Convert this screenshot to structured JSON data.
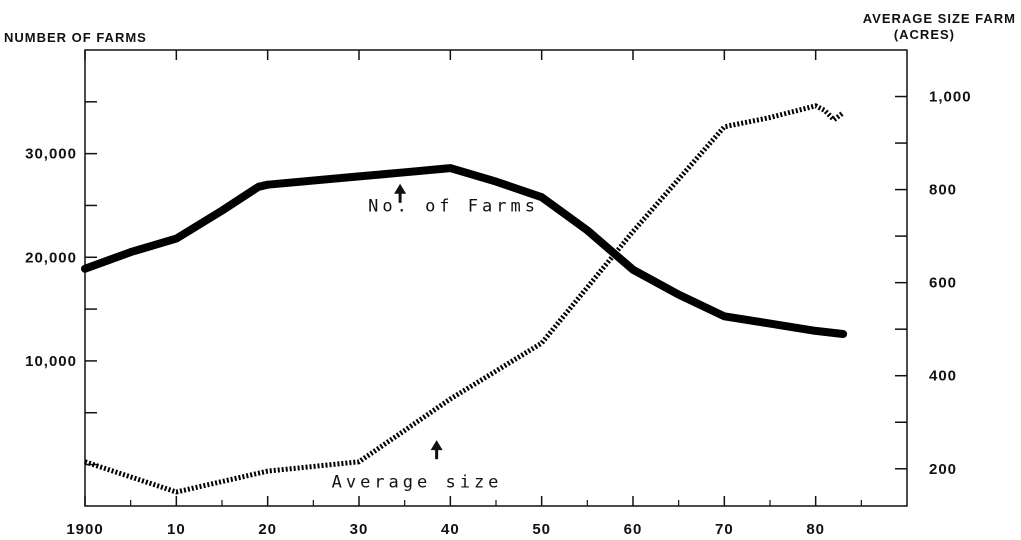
{
  "chart_data": {
    "type": "line",
    "left_axis_title": "NUMBER OF FARMS",
    "right_axis_title_line1": "AVERAGE SIZE FARM",
    "right_axis_title_line2": "(ACRES)",
    "x_ticks": [
      {
        "value": 1900,
        "label": "1900"
      },
      {
        "value": 1910,
        "label": "10"
      },
      {
        "value": 1920,
        "label": "20"
      },
      {
        "value": 1930,
        "label": "30"
      },
      {
        "value": 1940,
        "label": "40"
      },
      {
        "value": 1950,
        "label": "50"
      },
      {
        "value": 1960,
        "label": "60"
      },
      {
        "value": 1970,
        "label": "70"
      },
      {
        "value": 1980,
        "label": "80"
      }
    ],
    "xlim": [
      1900,
      1990
    ],
    "y_left": {
      "ylim": [
        -4000,
        40000
      ],
      "labeled_ticks": [
        {
          "value": 10000,
          "label": "10,000"
        },
        {
          "value": 20000,
          "label": "20,000"
        },
        {
          "value": 30000,
          "label": "30,000"
        }
      ],
      "minor_ticks": [
        0,
        5000,
        15000,
        25000,
        35000
      ]
    },
    "y_right": {
      "ylim": [
        120,
        1100
      ],
      "labeled_ticks": [
        {
          "value": 200,
          "label": "200"
        },
        {
          "value": 400,
          "label": "400"
        },
        {
          "value": 600,
          "label": "600"
        },
        {
          "value": 800,
          "label": "800"
        },
        {
          "value": 1000,
          "label": "1,000"
        }
      ],
      "minor_ticks": [
        300,
        500,
        700,
        900
      ]
    },
    "series": [
      {
        "axis": "left",
        "style": "solid",
        "color": "#000000",
        "x": [
          1900,
          1905,
          1910,
          1915,
          1919,
          1920,
          1930,
          1935,
          1940,
          1945,
          1950,
          1955,
          1960,
          1965,
          1970,
          1975,
          1980,
          1983
        ],
        "y": [
          18900,
          20500,
          21800,
          24500,
          26800,
          27000,
          27800,
          28200,
          28600,
          27300,
          25800,
          22600,
          18800,
          16400,
          14300,
          13600,
          12900,
          12600
        ]
      },
      {
        "axis": "right",
        "style": "dotted",
        "color": "#000000",
        "x": [
          1900,
          1910,
          1920,
          1930,
          1940,
          1950,
          1960,
          1970,
          1975,
          1980,
          1981,
          1982,
          1983
        ],
        "y": [
          215,
          150,
          195,
          215,
          350,
          470,
          710,
          935,
          955,
          980,
          970,
          950,
          965
        ]
      }
    ],
    "annotations": [
      {
        "text": "No. of Farms",
        "x": 1931,
        "y_left": 24400,
        "arrow_x": 1934.5,
        "arrow_y_left": 26800
      },
      {
        "text": "Average size",
        "x": 1927,
        "y_right": 160,
        "arrow_x": 1938.5,
        "arrow_y_right": 255
      }
    ],
    "grid": false,
    "legend": "none"
  }
}
